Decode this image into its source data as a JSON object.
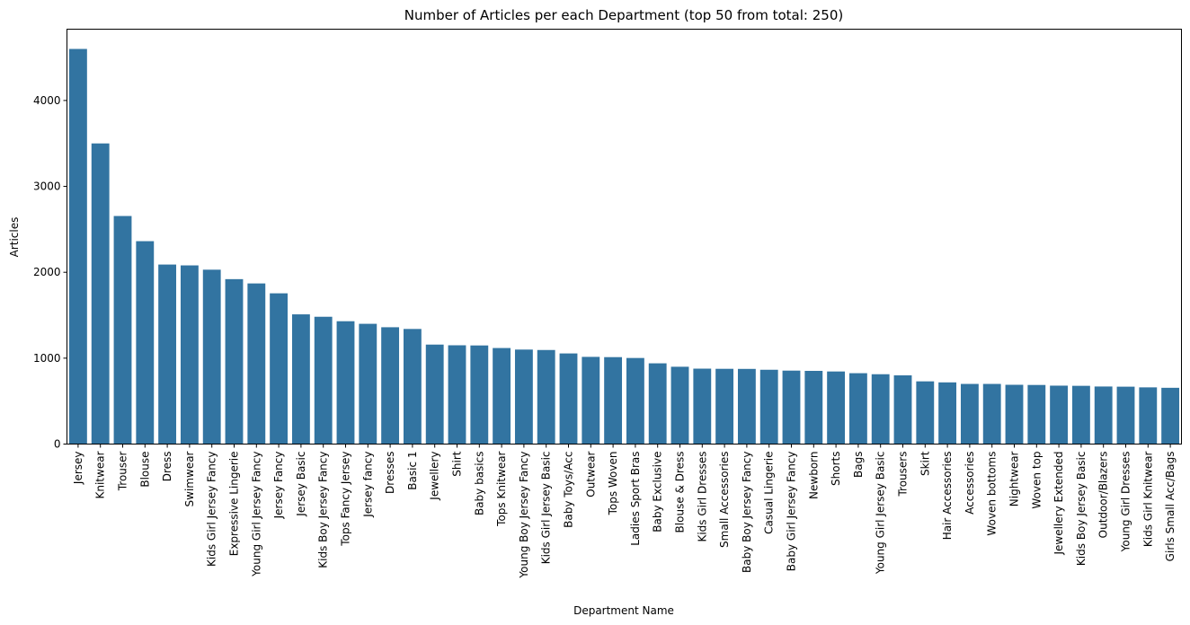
{
  "chart_data": {
    "type": "bar",
    "title": "Number of Articles per each Department (top 50 from total: 250)",
    "xlabel": "Department Name",
    "ylabel": "Articles",
    "ylim": [
      0,
      4830
    ],
    "yticks": [
      0,
      1000,
      2000,
      3000,
      4000
    ],
    "grid": false,
    "bar_color": "#3274a1",
    "categories": [
      "Jersey",
      "Knitwear",
      "Trouser",
      "Blouse",
      "Dress",
      "Swimwear",
      "Kids Girl Jersey Fancy",
      "Expressive Lingerie",
      "Young Girl Jersey Fancy",
      "Jersey Fancy",
      "Jersey Basic",
      "Kids Boy Jersey Fancy",
      "Tops Fancy Jersey",
      "Jersey fancy",
      "Dresses",
      "Basic 1",
      "Jewellery",
      "Shirt",
      "Baby basics",
      "Tops Knitwear",
      "Young Boy Jersey Fancy",
      "Kids Girl Jersey Basic",
      "Baby Toys/Acc",
      "Outwear",
      "Tops Woven",
      "Ladies Sport Bras",
      "Baby Exclusive",
      "Blouse & Dress",
      "Kids Girl Dresses",
      "Small Accessories",
      "Baby Boy Jersey Fancy",
      "Casual Lingerie",
      "Baby Girl Jersey Fancy",
      "Newborn",
      "Shorts",
      "Bags",
      "Young Girl Jersey Basic",
      "Trousers",
      "Skirt",
      "Hair Accessories",
      "Accessories",
      "Woven bottoms",
      "Nightwear",
      "Woven top",
      "Jewellery Extended",
      "Kids Boy Jersey Basic",
      "Outdoor/Blazers",
      "Young Girl Dresses",
      "Kids Girl Knitwear",
      "Girls Small Acc/Bags"
    ],
    "values": [
      4600,
      3500,
      2655,
      2362,
      2090,
      2080,
      2030,
      1920,
      1870,
      1755,
      1510,
      1482,
      1430,
      1400,
      1360,
      1340,
      1158,
      1150,
      1148,
      1118,
      1100,
      1095,
      1055,
      1015,
      1012,
      1002,
      940,
      900,
      878,
      876,
      875,
      865,
      855,
      852,
      845,
      825,
      813,
      800,
      730,
      718,
      700,
      700,
      690,
      688,
      680,
      678,
      670,
      668,
      660,
      655
    ]
  }
}
